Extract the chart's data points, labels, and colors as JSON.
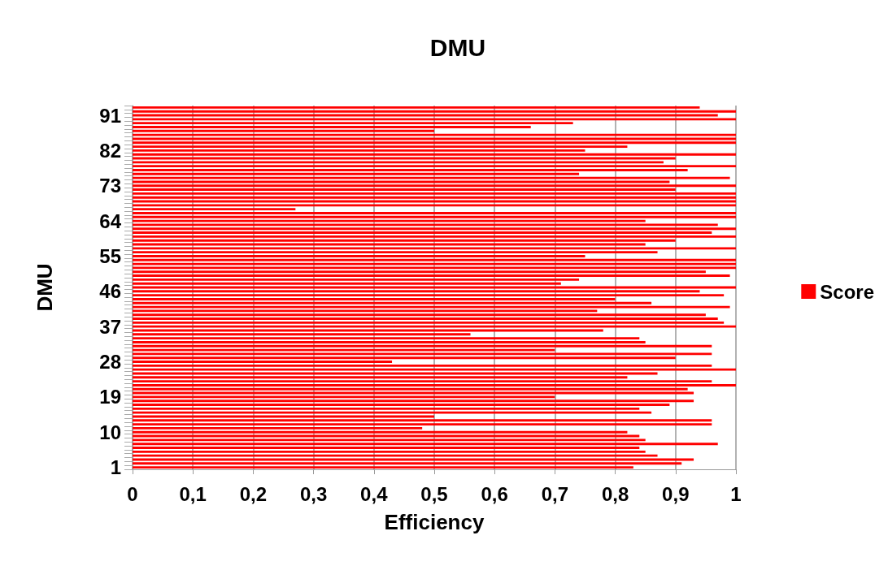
{
  "chart_data": {
    "type": "bar",
    "orientation": "horizontal",
    "title": "DMU",
    "xlabel": "Efficiency",
    "ylabel": "DMU",
    "categories": [
      null,
      null,
      "91",
      null,
      null,
      null,
      null,
      null,
      null,
      null,
      null,
      "82",
      null,
      null,
      null,
      null,
      null,
      null,
      null,
      null,
      "73",
      null,
      null,
      null,
      null,
      null,
      null,
      null,
      null,
      "64",
      null,
      null,
      null,
      null,
      null,
      null,
      null,
      null,
      "55",
      null,
      null,
      null,
      null,
      null,
      null,
      null,
      null,
      "46",
      null,
      null,
      null,
      null,
      null,
      null,
      null,
      null,
      "37",
      null,
      null,
      null,
      null,
      null,
      null,
      null,
      null,
      "28",
      null,
      null,
      null,
      null,
      null,
      null,
      null,
      null,
      "19",
      null,
      null,
      null,
      null,
      null,
      null,
      null,
      null,
      "10",
      null,
      null,
      null,
      null,
      null,
      null,
      null,
      null,
      "1"
    ],
    "series": [
      {
        "name": "Score",
        "color": "#ff0000",
        "values": [
          0.94,
          1,
          0.97,
          1,
          0.73,
          0.66,
          0.5,
          1,
          1,
          1,
          0.82,
          0.75,
          1,
          0.9,
          0.88,
          1,
          0.92,
          0.74,
          0.99,
          0.89,
          1,
          0.9,
          1,
          1,
          1,
          1,
          0.27,
          1,
          1,
          0.85,
          0.97,
          1,
          0.96,
          1,
          0.9,
          0.85,
          1,
          0.87,
          0.75,
          1,
          1,
          1,
          0.95,
          0.99,
          0.74,
          0.71,
          1,
          0.94,
          0.98,
          0.8,
          0.86,
          0.99,
          0.77,
          0.95,
          0.97,
          0.98,
          1,
          0.78,
          0.56,
          0.84,
          0.85,
          0.96,
          0.7,
          0.96,
          0.9,
          0.43,
          0.96,
          1,
          0.87,
          0.82,
          0.96,
          1,
          0.92,
          0.93,
          0.7,
          0.93,
          0.89,
          0.84,
          0.86,
          0.5,
          0.96,
          0.96,
          0.48,
          0.82,
          0.84,
          0.85,
          0.97,
          0.84,
          0.85,
          0.87,
          0.93,
          0.91,
          0.83
        ]
      }
    ],
    "xlim": [
      0,
      1
    ],
    "xticks": [
      0,
      {
        "value": 0.1,
        "label": "0,1"
      },
      {
        "value": 0.2,
        "label": "0,2"
      },
      {
        "value": 0.3,
        "label": "0,3"
      },
      {
        "value": 0.4,
        "label": "0,4"
      },
      {
        "value": 0.5,
        "label": "0,5"
      },
      {
        "value": 0.6,
        "label": "0,6"
      },
      {
        "value": 0.7,
        "label": "0,7"
      },
      {
        "value": 0.8,
        "label": "0,8"
      },
      {
        "value": 0.9,
        "label": "0,9"
      },
      1
    ],
    "grid": "x",
    "legend": "right"
  }
}
